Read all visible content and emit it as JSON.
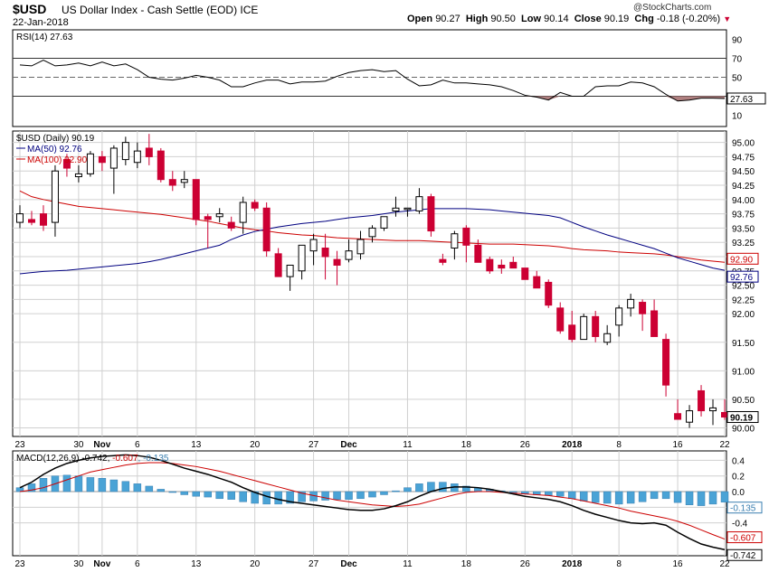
{
  "header": {
    "symbol": "$USD",
    "description": "US Dollar Index - Cash Settle (EOD) ICE",
    "date": "22-Jan-2018",
    "open_label": "Open",
    "open": "90.27",
    "high_label": "High",
    "high": "90.50",
    "low_label": "Low",
    "low": "90.14",
    "close_label": "Close",
    "close": "90.19",
    "chg_label": "Chg",
    "chg": "-0.18 (-0.20%)",
    "chg_arrow": "▼",
    "watermark": "@StockCharts.com"
  },
  "colors": {
    "up": "#ffffff",
    "down": "#cc0033",
    "ma50": "#000080",
    "ma100": "#cc0000",
    "hist": "#4aa3d6",
    "rsi_fill": "#b08080",
    "grid": "#d0d0d0"
  },
  "chart_data": [
    {
      "type": "line",
      "title": "RSI(14) 27.63",
      "legend": "RSI(14) 27.63",
      "ylim": [
        0,
        100
      ],
      "y_ticks": [
        10,
        30,
        50,
        70,
        90
      ],
      "reference_lines": [
        30,
        50,
        70
      ],
      "last_value_label": "27.63",
      "series": [
        {
          "name": "RSI(14)",
          "values": [
            63,
            62,
            68,
            62,
            63,
            65,
            62,
            66,
            62,
            64,
            58,
            50,
            48,
            47,
            49,
            52,
            50,
            47,
            40,
            40,
            44,
            47,
            47,
            43,
            45,
            45,
            46,
            51,
            55,
            57,
            58,
            56,
            57,
            48,
            41,
            42,
            47,
            44,
            44,
            43,
            42,
            40,
            36,
            31,
            29,
            26,
            34,
            30,
            30,
            40,
            41,
            41,
            45,
            44,
            40,
            32,
            25,
            26,
            28,
            28,
            27.63
          ]
        }
      ]
    },
    {
      "type": "candlestick",
      "title": "$USD (Daily) 90.19",
      "ylim": [
        89.85,
        95.2
      ],
      "y_ticks": [
        90.0,
        90.25,
        90.5,
        90.75,
        91.0,
        91.25,
        91.5,
        91.75,
        92.0,
        92.25,
        92.5,
        92.75,
        93.0,
        93.25,
        93.5,
        93.75,
        94.0,
        94.25,
        94.5,
        94.75,
        95.0
      ],
      "y_tick_labels": [
        "90.00",
        "90.50",
        "91.00",
        "91.50",
        "92.00",
        "92.25",
        "92.50",
        "92.75",
        "93.00",
        "93.25",
        "93.50",
        "93.75",
        "94.00",
        "94.25",
        "94.50",
        "94.75",
        "95.00"
      ],
      "last_value_labels": [
        "92.90",
        "92.76",
        "90.19"
      ],
      "x_ticks": [
        "23",
        "30",
        "Nov",
        "6",
        "13",
        "20",
        "27",
        "Dec",
        "11",
        "18",
        "26",
        "2018",
        "8",
        "16",
        "22"
      ],
      "legend": [
        {
          "name": "$USD (Daily) 90.19"
        },
        {
          "name": "MA(50) 92.76"
        },
        {
          "name": "MA(100) 92.90"
        }
      ],
      "candles": [
        {
          "o": 93.6,
          "h": 93.9,
          "l": 93.5,
          "c": 93.75
        },
        {
          "o": 93.65,
          "h": 93.8,
          "l": 93.55,
          "c": 93.6
        },
        {
          "o": 93.75,
          "h": 93.9,
          "l": 93.45,
          "c": 93.55
        },
        {
          "o": 93.6,
          "h": 94.6,
          "l": 93.35,
          "c": 94.5
        },
        {
          "o": 94.7,
          "h": 94.8,
          "l": 94.4,
          "c": 94.55
        },
        {
          "o": 94.4,
          "h": 94.6,
          "l": 94.3,
          "c": 94.45
        },
        {
          "o": 94.45,
          "h": 94.85,
          "l": 94.4,
          "c": 94.8
        },
        {
          "o": 94.75,
          "h": 94.85,
          "l": 94.5,
          "c": 94.65
        },
        {
          "o": 94.55,
          "h": 94.95,
          "l": 94.1,
          "c": 94.9
        },
        {
          "o": 94.7,
          "h": 95.1,
          "l": 94.6,
          "c": 95.0
        },
        {
          "o": 94.65,
          "h": 95.0,
          "l": 94.55,
          "c": 94.85
        },
        {
          "o": 94.9,
          "h": 95.15,
          "l": 94.6,
          "c": 94.75
        },
        {
          "o": 94.85,
          "h": 94.9,
          "l": 94.3,
          "c": 94.35
        },
        {
          "o": 94.35,
          "h": 94.5,
          "l": 94.15,
          "c": 94.25
        },
        {
          "o": 94.3,
          "h": 94.5,
          "l": 94.2,
          "c": 94.35
        },
        {
          "o": 94.35,
          "h": 94.35,
          "l": 93.55,
          "c": 93.65
        },
        {
          "o": 93.7,
          "h": 93.75,
          "l": 93.15,
          "c": 93.65
        },
        {
          "o": 93.7,
          "h": 93.85,
          "l": 93.6,
          "c": 93.75
        },
        {
          "o": 93.6,
          "h": 93.7,
          "l": 93.45,
          "c": 93.5
        },
        {
          "o": 93.6,
          "h": 94.05,
          "l": 93.4,
          "c": 93.95
        },
        {
          "o": 93.95,
          "h": 94.0,
          "l": 93.8,
          "c": 93.85
        },
        {
          "o": 93.85,
          "h": 93.95,
          "l": 93.0,
          "c": 93.1
        },
        {
          "o": 93.05,
          "h": 93.15,
          "l": 92.65,
          "c": 92.65
        },
        {
          "o": 92.65,
          "h": 92.8,
          "l": 92.4,
          "c": 92.85
        },
        {
          "o": 92.75,
          "h": 93.2,
          "l": 92.6,
          "c": 93.2
        },
        {
          "o": 93.1,
          "h": 93.4,
          "l": 92.85,
          "c": 93.3
        },
        {
          "o": 93.15,
          "h": 93.4,
          "l": 92.6,
          "c": 93.0
        },
        {
          "o": 92.95,
          "h": 93.1,
          "l": 92.5,
          "c": 92.85
        },
        {
          "o": 92.95,
          "h": 93.3,
          "l": 92.9,
          "c": 93.1
        },
        {
          "o": 93.05,
          "h": 93.45,
          "l": 92.95,
          "c": 93.3
        },
        {
          "o": 93.35,
          "h": 93.55,
          "l": 93.25,
          "c": 93.5
        },
        {
          "o": 93.5,
          "h": 93.7,
          "l": 93.45,
          "c": 93.7
        },
        {
          "o": 93.8,
          "h": 94.05,
          "l": 93.7,
          "c": 93.85
        },
        {
          "o": 93.85,
          "h": 93.85,
          "l": 93.7,
          "c": 93.85
        },
        {
          "o": 93.8,
          "h": 94.2,
          "l": 93.75,
          "c": 94.05
        },
        {
          "o": 94.05,
          "h": 94.1,
          "l": 93.35,
          "c": 93.45
        },
        {
          "o": 92.95,
          "h": 93.05,
          "l": 92.85,
          "c": 92.9
        },
        {
          "o": 93.15,
          "h": 93.45,
          "l": 92.95,
          "c": 93.4
        },
        {
          "o": 93.5,
          "h": 93.55,
          "l": 92.9,
          "c": 93.2
        },
        {
          "o": 93.2,
          "h": 93.3,
          "l": 92.9,
          "c": 92.9
        },
        {
          "o": 92.95,
          "h": 93.0,
          "l": 92.7,
          "c": 92.75
        },
        {
          "o": 92.85,
          "h": 92.95,
          "l": 92.7,
          "c": 92.8
        },
        {
          "o": 92.9,
          "h": 93.0,
          "l": 92.8,
          "c": 92.8
        },
        {
          "o": 92.8,
          "h": 92.8,
          "l": 92.6,
          "c": 92.6
        },
        {
          "o": 92.65,
          "h": 92.75,
          "l": 92.45,
          "c": 92.45
        },
        {
          "o": 92.55,
          "h": 92.6,
          "l": 92.1,
          "c": 92.15
        },
        {
          "o": 92.1,
          "h": 92.2,
          "l": 91.65,
          "c": 91.7
        },
        {
          "o": 91.8,
          "h": 92.05,
          "l": 91.5,
          "c": 91.55
        },
        {
          "o": 91.55,
          "h": 92.0,
          "l": 91.55,
          "c": 91.95
        },
        {
          "o": 91.95,
          "h": 92.05,
          "l": 91.5,
          "c": 91.6
        },
        {
          "o": 91.5,
          "h": 91.8,
          "l": 91.45,
          "c": 91.65
        },
        {
          "o": 91.8,
          "h": 92.15,
          "l": 91.6,
          "c": 92.1
        },
        {
          "o": 92.1,
          "h": 92.35,
          "l": 91.95,
          "c": 92.25
        },
        {
          "o": 92.2,
          "h": 92.25,
          "l": 91.7,
          "c": 92.0
        },
        {
          "o": 92.05,
          "h": 92.25,
          "l": 91.6,
          "c": 91.6
        },
        {
          "o": 91.55,
          "h": 91.65,
          "l": 90.55,
          "c": 90.75
        },
        {
          "o": 90.25,
          "h": 90.5,
          "l": 90.15,
          "c": 90.15
        },
        {
          "o": 90.1,
          "h": 90.4,
          "l": 90.0,
          "c": 90.3
        },
        {
          "o": 90.65,
          "h": 90.75,
          "l": 90.2,
          "c": 90.3
        },
        {
          "o": 90.3,
          "h": 90.5,
          "l": 90.05,
          "c": 90.35
        },
        {
          "o": 90.27,
          "h": 90.5,
          "l": 90.14,
          "c": 90.19
        }
      ],
      "ma50": [
        92.7,
        92.72,
        92.74,
        92.75,
        92.76,
        92.78,
        92.8,
        92.82,
        92.84,
        92.86,
        92.88,
        92.91,
        92.95,
        93.0,
        93.05,
        93.1,
        93.15,
        93.2,
        93.3,
        93.38,
        93.44,
        93.48,
        93.52,
        93.55,
        93.58,
        93.6,
        93.62,
        93.65,
        93.68,
        93.7,
        93.72,
        93.75,
        93.78,
        93.8,
        93.82,
        93.84,
        93.84,
        93.84,
        93.84,
        93.83,
        93.82,
        93.8,
        93.78,
        93.76,
        93.74,
        93.72,
        93.68,
        93.6,
        93.52,
        93.45,
        93.38,
        93.32,
        93.26,
        93.2,
        93.14,
        93.06,
        92.98,
        92.92,
        92.86,
        92.8,
        92.76
      ],
      "ma100": [
        94.15,
        94.05,
        94.0,
        93.96,
        93.92,
        93.88,
        93.86,
        93.84,
        93.82,
        93.8,
        93.78,
        93.76,
        93.74,
        93.71,
        93.68,
        93.65,
        93.62,
        93.58,
        93.54,
        93.5,
        93.47,
        93.45,
        93.42,
        93.4,
        93.38,
        93.37,
        93.35,
        93.33,
        93.32,
        93.31,
        93.3,
        93.29,
        93.28,
        93.28,
        93.28,
        93.27,
        93.26,
        93.25,
        93.24,
        93.23,
        93.22,
        93.22,
        93.22,
        93.21,
        93.2,
        93.19,
        93.17,
        93.14,
        93.12,
        93.11,
        93.1,
        93.08,
        93.07,
        93.06,
        93.05,
        93.03,
        93.0,
        92.97,
        92.94,
        92.92,
        92.9
      ]
    },
    {
      "type": "line",
      "title": "MACD(12,26,9) -0.742, -0.607, -0.135",
      "legend": [
        {
          "name": "MACD(12,26,9)",
          "value": "-0.742"
        },
        {
          "name": "signal",
          "value": "-0.607"
        },
        {
          "name": "histogram",
          "value": "-0.135"
        }
      ],
      "ylim": [
        -0.82,
        0.52
      ],
      "y_ticks": [
        0.4,
        0.2,
        0.0,
        -0.2,
        -0.4
      ],
      "y_tick_labels": [
        "0.4",
        "0.2",
        "0.0",
        "-0.2",
        "-0.4"
      ],
      "last_value_labels": [
        "-0.135",
        "-0.607",
        "-0.742"
      ],
      "x_ticks": [
        "23",
        "30",
        "Nov",
        "6",
        "13",
        "20",
        "27",
        "Dec",
        "11",
        "18",
        "26",
        "2018",
        "8",
        "16",
        "22"
      ],
      "series": [
        {
          "name": "MACD",
          "values": [
            0.05,
            0.12,
            0.22,
            0.3,
            0.36,
            0.4,
            0.43,
            0.45,
            0.46,
            0.47,
            0.46,
            0.44,
            0.4,
            0.35,
            0.3,
            0.26,
            0.22,
            0.17,
            0.12,
            0.05,
            -0.01,
            -0.06,
            -0.1,
            -0.13,
            -0.15,
            -0.17,
            -0.19,
            -0.21,
            -0.23,
            -0.24,
            -0.24,
            -0.22,
            -0.18,
            -0.13,
            -0.06,
            0.0,
            0.04,
            0.06,
            0.06,
            0.05,
            0.03,
            0.0,
            -0.03,
            -0.06,
            -0.08,
            -0.1,
            -0.13,
            -0.18,
            -0.24,
            -0.29,
            -0.33,
            -0.37,
            -0.4,
            -0.41,
            -0.4,
            -0.43,
            -0.52,
            -0.6,
            -0.67,
            -0.71,
            -0.742
          ]
        },
        {
          "name": "signal",
          "values": [
            0.0,
            0.02,
            0.05,
            0.1,
            0.15,
            0.2,
            0.25,
            0.28,
            0.31,
            0.34,
            0.36,
            0.37,
            0.37,
            0.36,
            0.34,
            0.32,
            0.29,
            0.26,
            0.22,
            0.18,
            0.14,
            0.1,
            0.06,
            0.02,
            -0.02,
            -0.05,
            -0.08,
            -0.11,
            -0.13,
            -0.15,
            -0.17,
            -0.18,
            -0.19,
            -0.18,
            -0.16,
            -0.12,
            -0.08,
            -0.04,
            -0.01,
            0.0,
            0.0,
            -0.01,
            -0.02,
            -0.03,
            -0.04,
            -0.05,
            -0.07,
            -0.09,
            -0.12,
            -0.15,
            -0.18,
            -0.21,
            -0.25,
            -0.28,
            -0.31,
            -0.34,
            -0.38,
            -0.43,
            -0.49,
            -0.55,
            -0.607
          ]
        },
        {
          "name": "histogram",
          "values": [
            0.05,
            0.1,
            0.17,
            0.2,
            0.21,
            0.2,
            0.18,
            0.17,
            0.15,
            0.13,
            0.1,
            0.07,
            0.03,
            -0.01,
            -0.04,
            -0.06,
            -0.07,
            -0.09,
            -0.1,
            -0.13,
            -0.15,
            -0.16,
            -0.16,
            -0.15,
            -0.13,
            -0.12,
            -0.11,
            -0.1,
            -0.1,
            -0.09,
            -0.07,
            -0.04,
            0.01,
            0.05,
            0.1,
            0.12,
            0.12,
            0.1,
            0.07,
            0.05,
            0.03,
            0.01,
            -0.01,
            -0.03,
            -0.04,
            -0.05,
            -0.06,
            -0.09,
            -0.12,
            -0.14,
            -0.15,
            -0.16,
            -0.15,
            -0.13,
            -0.09,
            -0.09,
            -0.14,
            -0.17,
            -0.18,
            -0.16,
            -0.135
          ]
        }
      ]
    }
  ]
}
